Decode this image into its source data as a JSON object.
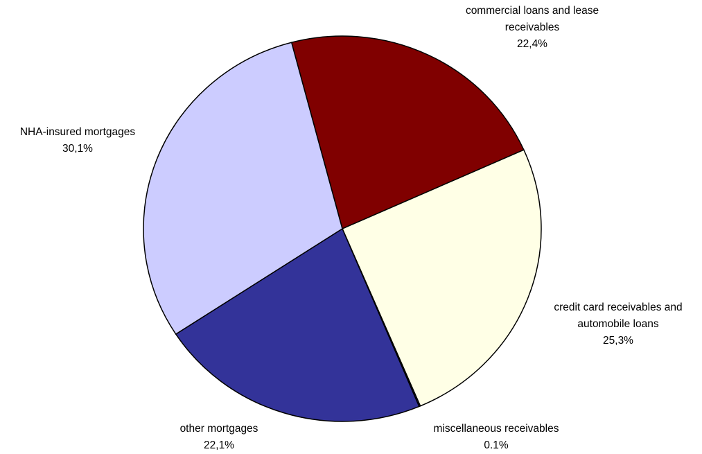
{
  "chart_data": {
    "type": "pie",
    "title": "",
    "slices": [
      {
        "label_lines": [
          "commercial loans and lease",
          "receivables"
        ],
        "value_label": "22,4%",
        "value": 22.4,
        "color": "#800000"
      },
      {
        "label_lines": [
          "credit card receivables and",
          "automobile loans"
        ],
        "value_label": "25,3%",
        "value": 25.3,
        "color": "#FFFFE6"
      },
      {
        "label_lines": [
          "miscellaneous receivables"
        ],
        "value_label": "0.1%",
        "value": 0.1,
        "color": "#333399"
      },
      {
        "label_lines": [
          "other mortgages"
        ],
        "value_label": "22,1%",
        "value": 22.1,
        "color": "#333399"
      },
      {
        "label_lines": [
          "NHA-insured mortgages"
        ],
        "value_label": "30,1%",
        "value": 30.1,
        "color": "#CCCCFF"
      }
    ]
  }
}
